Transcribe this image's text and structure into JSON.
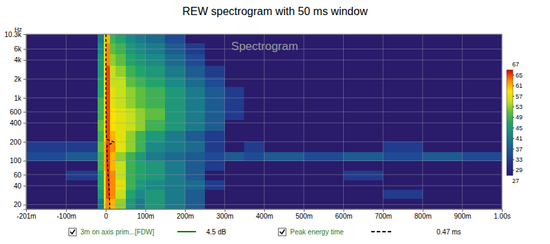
{
  "chart_data": {
    "type": "heatmap",
    "title": "REW spectrogram with 50 ms window",
    "annotation": "Spectrogram",
    "ylabel": "Hz",
    "log": "y",
    "grid": true,
    "xlim": [
      -201,
      1000
    ],
    "ylim": [
      17,
      10300
    ],
    "xticks": [
      {
        "value": -201,
        "label": "-201m"
      },
      {
        "value": -100,
        "label": "-100m"
      },
      0,
      {
        "value": 100,
        "label": "100m"
      },
      {
        "value": 200,
        "label": "200m"
      },
      {
        "value": 300,
        "label": "300m"
      },
      {
        "value": 400,
        "label": "400m"
      },
      {
        "value": 500,
        "label": "500m"
      },
      {
        "value": 600,
        "label": "600m"
      },
      {
        "value": 700,
        "label": "700m"
      },
      {
        "value": 800,
        "label": "800m"
      },
      {
        "value": 900,
        "label": "900m"
      },
      {
        "value": 1000,
        "label": "1.00s"
      }
    ],
    "yticks": [
      {
        "value": 10300,
        "label": "10.3k"
      },
      {
        "value": 6000,
        "label": "6k"
      },
      {
        "value": 4000,
        "label": "4k"
      },
      {
        "value": 2000,
        "label": "2k"
      },
      {
        "value": 1000,
        "label": "1k"
      },
      600,
      400,
      200,
      100,
      60,
      40,
      20
    ],
    "x_edges": [
      -201,
      -100,
      -20,
      -5,
      0,
      10,
      25,
      50,
      75,
      100,
      150,
      200,
      250,
      300,
      350,
      400,
      500,
      600,
      700,
      800,
      900,
      1000
    ],
    "y_edges": [
      17,
      25,
      35,
      50,
      70,
      100,
      140,
      200,
      300,
      450,
      700,
      1000,
      1500,
      2200,
      3300,
      5000,
      7500,
      10300
    ],
    "cells": [
      [
        27,
        27,
        41,
        57,
        63,
        61,
        53,
        45,
        41,
        45,
        41,
        37,
        27,
        27,
        27,
        27,
        27,
        27,
        27,
        27,
        27
      ],
      [
        27,
        27,
        45,
        59,
        65,
        63,
        55,
        47,
        43,
        45,
        41,
        37,
        27,
        27,
        27,
        27,
        27,
        27,
        33,
        27,
        27
      ],
      [
        27,
        27,
        47,
        59,
        65,
        63,
        57,
        49,
        45,
        43,
        41,
        39,
        33,
        27,
        27,
        27,
        27,
        27,
        27,
        27,
        27
      ],
      [
        27,
        33,
        47,
        59,
        65,
        63,
        55,
        49,
        47,
        45,
        41,
        37,
        27,
        27,
        27,
        27,
        27,
        33,
        27,
        27,
        27
      ],
      [
        27,
        27,
        49,
        61,
        65,
        61,
        55,
        49,
        47,
        45,
        41,
        37,
        33,
        27,
        27,
        27,
        27,
        27,
        27,
        27,
        27
      ],
      [
        35,
        37,
        49,
        61,
        65,
        61,
        53,
        49,
        45,
        41,
        39,
        37,
        35,
        37,
        35,
        37,
        35,
        37,
        35,
        37,
        35
      ],
      [
        33,
        33,
        51,
        61,
        65,
        63,
        57,
        53,
        49,
        43,
        41,
        39,
        33,
        27,
        33,
        27,
        27,
        27,
        33,
        27,
        27
      ],
      [
        27,
        27,
        49,
        59,
        65,
        61,
        57,
        53,
        49,
        45,
        41,
        37,
        33,
        27,
        27,
        27,
        27,
        27,
        27,
        27,
        27
      ],
      [
        27,
        27,
        51,
        59,
        65,
        59,
        57,
        55,
        53,
        49,
        45,
        41,
        37,
        27,
        27,
        27,
        27,
        27,
        27,
        27,
        27
      ],
      [
        27,
        27,
        49,
        59,
        65,
        59,
        57,
        55,
        53,
        51,
        45,
        41,
        37,
        33,
        27,
        27,
        27,
        27,
        27,
        27,
        27
      ],
      [
        27,
        27,
        49,
        59,
        65,
        57,
        55,
        53,
        51,
        49,
        45,
        41,
        37,
        33,
        27,
        27,
        27,
        27,
        27,
        27,
        27
      ],
      [
        27,
        27,
        47,
        59,
        65,
        57,
        55,
        53,
        51,
        49,
        45,
        41,
        37,
        33,
        27,
        27,
        27,
        27,
        27,
        27,
        27
      ],
      [
        27,
        27,
        47,
        59,
        65,
        55,
        55,
        51,
        49,
        47,
        43,
        39,
        35,
        27,
        27,
        27,
        27,
        27,
        27,
        27,
        27
      ],
      [
        27,
        27,
        45,
        59,
        65,
        55,
        53,
        49,
        47,
        45,
        41,
        37,
        33,
        27,
        27,
        27,
        27,
        27,
        27,
        27,
        27
      ],
      [
        27,
        27,
        45,
        57,
        63,
        53,
        51,
        47,
        45,
        43,
        39,
        35,
        27,
        27,
        27,
        27,
        27,
        27,
        27,
        27,
        27
      ],
      [
        27,
        27,
        43,
        57,
        63,
        51,
        49,
        45,
        43,
        41,
        37,
        33,
        27,
        27,
        27,
        27,
        27,
        27,
        27,
        27,
        27
      ],
      [
        27,
        27,
        41,
        55,
        61,
        49,
        47,
        43,
        41,
        39,
        35,
        27,
        27,
        27,
        27,
        27,
        27,
        27,
        27,
        27,
        27
      ]
    ],
    "colorbar": {
      "range": [
        27,
        67
      ],
      "ticks": [
        29,
        33,
        37,
        41,
        45,
        49,
        53,
        57,
        61,
        65
      ]
    },
    "series": [
      {
        "name": "3m on axis prim...[FDW]",
        "color": "#008000",
        "label": "4.5 dB"
      },
      {
        "name": "Peak energy time",
        "color": "#000000",
        "line_style": "dashed",
        "label": "0.47 ms",
        "x": [
          0.5,
          0.5,
          0.5,
          0.5,
          1,
          1,
          2,
          10,
          20,
          18,
          5,
          3,
          3,
          4,
          6,
          8,
          10,
          10
        ],
        "y": [
          10300,
          5000,
          2000,
          1000,
          500,
          300,
          220,
          210,
          200,
          190,
          180,
          170,
          150,
          100,
          60,
          40,
          20,
          17
        ]
      }
    ]
  }
}
